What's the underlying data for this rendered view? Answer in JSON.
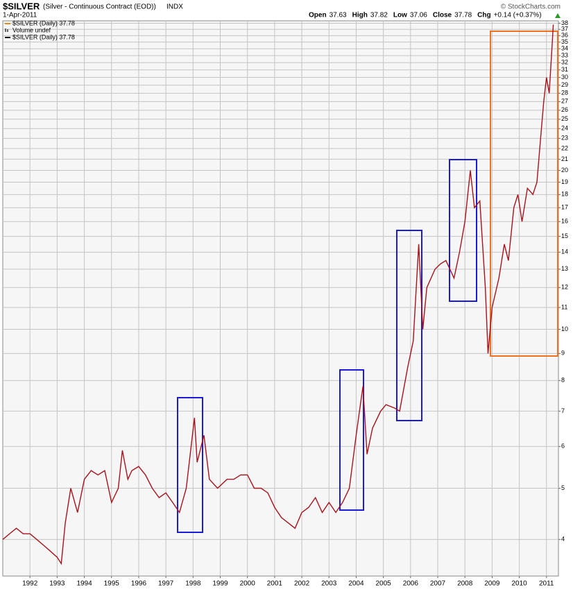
{
  "chart_data": {
    "type": "line",
    "title": "$SILVER",
    "subtitle": "(Silver - Continuous Contract (EOD))",
    "exchange": "INDX",
    "date": "1-Apr-2011",
    "quote": [
      {
        "label": "Open",
        "value": "37.63"
      },
      {
        "label": "High",
        "value": "37.82"
      },
      {
        "label": "Low",
        "value": "37.06"
      },
      {
        "label": "Close",
        "value": "37.78"
      },
      {
        "label": "Chg",
        "value": "+0.14 (+0.37%)"
      }
    ],
    "credit": "© StockCharts.com",
    "legend_extra": [
      "Volume undef",
      "$SILVER (Daily) 37.78"
    ],
    "x": [
      1991.0,
      1991.25,
      1991.5,
      1991.75,
      1992.0,
      1992.25,
      1992.5,
      1992.75,
      1993.0,
      1993.15,
      1993.3,
      1993.5,
      1993.75,
      1994.0,
      1994.25,
      1994.5,
      1994.75,
      1995.0,
      1995.25,
      1995.4,
      1995.6,
      1995.75,
      1996.0,
      1996.25,
      1996.5,
      1996.75,
      1997.0,
      1997.25,
      1997.5,
      1997.75,
      1998.05,
      1998.15,
      1998.4,
      1998.6,
      1998.9,
      1999.25,
      1999.5,
      1999.75,
      2000.0,
      2000.25,
      2000.5,
      2000.75,
      2001.0,
      2001.25,
      2001.5,
      2001.75,
      2002.0,
      2002.25,
      2002.5,
      2002.75,
      2003.0,
      2003.25,
      2003.5,
      2003.75,
      2004.0,
      2004.25,
      2004.4,
      2004.6,
      2004.9,
      2005.1,
      2005.4,
      2005.6,
      2005.9,
      2006.1,
      2006.3,
      2006.45,
      2006.6,
      2006.9,
      2007.1,
      2007.3,
      2007.6,
      2007.8,
      2008.0,
      2008.2,
      2008.35,
      2008.55,
      2008.75,
      2008.85,
      2009.0,
      2009.25,
      2009.45,
      2009.6,
      2009.8,
      2009.95,
      2010.1,
      2010.3,
      2010.5,
      2010.65,
      2010.8,
      2010.9,
      2011.0,
      2011.1,
      2011.2,
      2011.25
    ],
    "series": [
      {
        "name": "$SILVER (Daily) 37.78",
        "color": "#a8121a",
        "values": [
          4.0,
          4.1,
          4.2,
          4.1,
          4.1,
          4.0,
          3.9,
          3.8,
          3.7,
          3.6,
          4.3,
          5.0,
          4.5,
          5.2,
          5.4,
          5.3,
          5.4,
          4.7,
          5.0,
          5.9,
          5.2,
          5.4,
          5.5,
          5.3,
          5.0,
          4.8,
          4.9,
          4.7,
          4.5,
          5.0,
          6.8,
          5.6,
          6.3,
          5.2,
          5.0,
          5.2,
          5.2,
          5.3,
          5.3,
          5.0,
          5.0,
          4.9,
          4.6,
          4.4,
          4.3,
          4.2,
          4.5,
          4.6,
          4.8,
          4.5,
          4.7,
          4.5,
          4.7,
          5.0,
          6.3,
          7.8,
          5.8,
          6.5,
          7.0,
          7.2,
          7.1,
          7.0,
          8.5,
          9.5,
          14.5,
          10.0,
          12.0,
          13.0,
          13.3,
          13.5,
          12.5,
          14.0,
          16.0,
          20.0,
          17.0,
          17.5,
          12.0,
          9.0,
          11.0,
          12.5,
          14.5,
          13.5,
          17.0,
          18.0,
          16.0,
          18.5,
          18.0,
          19.0,
          23.5,
          27.0,
          30.0,
          28.0,
          34.0,
          37.78
        ]
      }
    ],
    "xlim": [
      1991.0,
      2011.44
    ],
    "xticks": [
      1992,
      1993,
      1994,
      1995,
      1996,
      1997,
      1998,
      1999,
      2000,
      2001,
      2002,
      2003,
      2004,
      2005,
      2006,
      2007,
      2008,
      2009,
      2010,
      2011
    ],
    "ylim": [
      3.41,
      38.4
    ],
    "yticks": [
      4,
      5,
      6,
      7,
      8,
      9,
      10,
      11,
      12,
      13,
      14,
      15,
      16,
      17,
      18,
      19,
      20,
      21,
      22,
      23,
      24,
      25,
      26,
      27,
      28,
      29,
      30,
      31,
      32,
      33,
      34,
      35,
      36,
      37,
      38
    ],
    "log_scale": true,
    "grid": true
  }
}
